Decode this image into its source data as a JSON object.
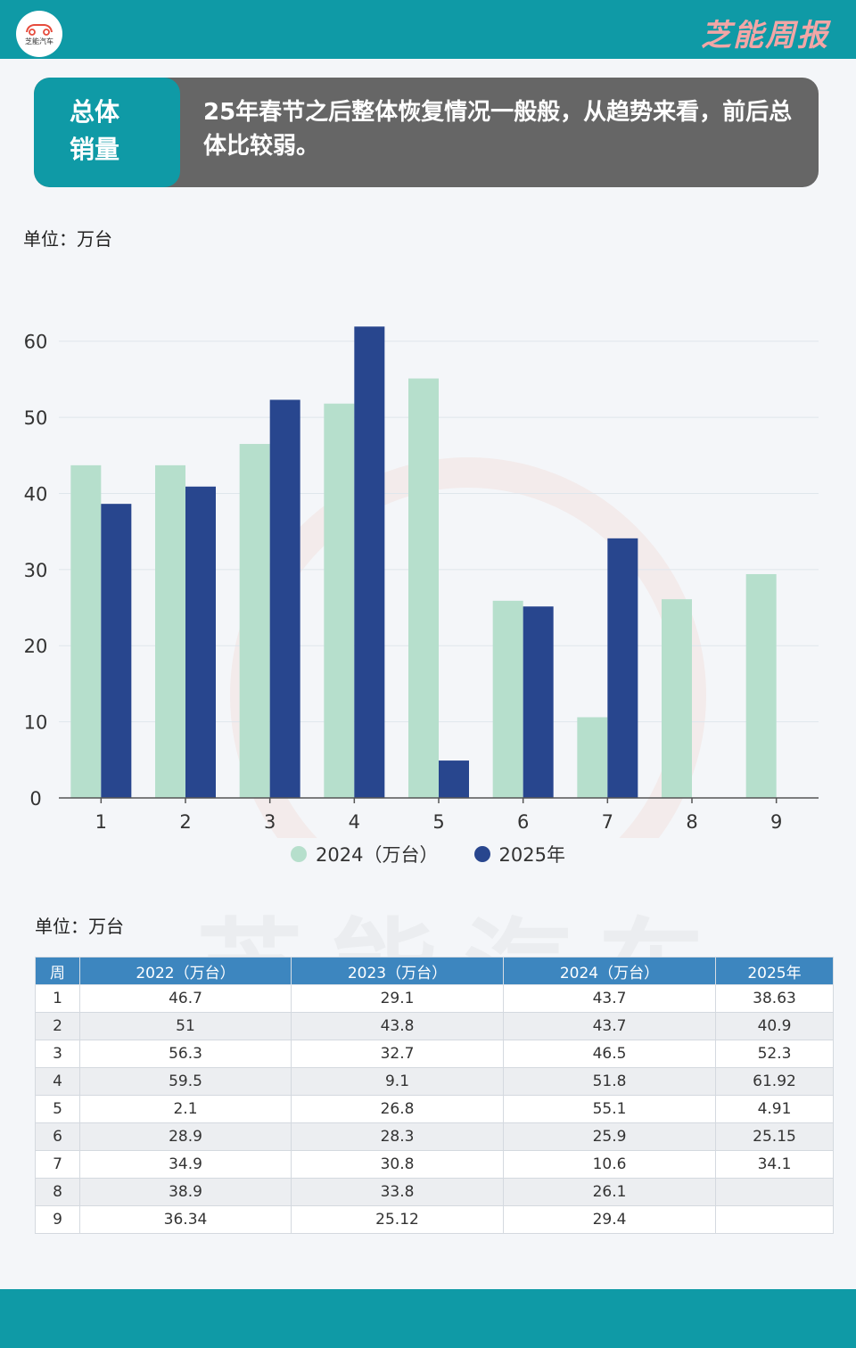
{
  "header": {
    "logo_text": "芝能汽车",
    "brand": "芝能周报"
  },
  "headline": {
    "tag_line1": "总体",
    "tag_line2": "销量",
    "text": "25年春节之后整体恢复情况一般般，从趋势来看，前后总体比较弱。"
  },
  "chart_unit": "单位：万台",
  "table_unit": "单位：万台",
  "watermark": "芝能汽车",
  "colors": {
    "teal": "#0f9aa6",
    "series_2024": "#b6dfcc",
    "series_2025": "#28468e",
    "table_header": "#3d86bf"
  },
  "chart_data": {
    "type": "bar",
    "categories": [
      "1",
      "2",
      "3",
      "4",
      "5",
      "6",
      "7",
      "8",
      "9"
    ],
    "series": [
      {
        "name": "2024（万台）",
        "values": [
          43.7,
          43.7,
          46.5,
          51.8,
          55.1,
          25.9,
          10.6,
          26.1,
          29.4
        ]
      },
      {
        "name": "2025年",
        "values": [
          38.63,
          40.9,
          52.3,
          61.92,
          4.91,
          25.15,
          34.1,
          null,
          null
        ]
      }
    ],
    "title": "",
    "xlabel": "",
    "ylabel": "",
    "ylim": [
      0,
      65
    ],
    "yticks": [
      0,
      10,
      20,
      30,
      40,
      50,
      60
    ],
    "grid": true,
    "legend": "bottom-center"
  },
  "table": {
    "headers": [
      "周",
      "2022（万台）",
      "2023（万台）",
      "2024（万台）",
      "2025年"
    ],
    "rows": [
      [
        "1",
        "46.7",
        "29.1",
        "43.7",
        "38.63"
      ],
      [
        "2",
        "51",
        "43.8",
        "43.7",
        "40.9"
      ],
      [
        "3",
        "56.3",
        "32.7",
        "46.5",
        "52.3"
      ],
      [
        "4",
        "59.5",
        "9.1",
        "51.8",
        "61.92"
      ],
      [
        "5",
        "2.1",
        "26.8",
        "55.1",
        "4.91"
      ],
      [
        "6",
        "28.9",
        "28.3",
        "25.9",
        "25.15"
      ],
      [
        "7",
        "34.9",
        "30.8",
        "10.6",
        "34.1"
      ],
      [
        "8",
        "38.9",
        "33.8",
        "26.1",
        ""
      ],
      [
        "9",
        "36.34",
        "25.12",
        "29.4",
        ""
      ]
    ]
  }
}
